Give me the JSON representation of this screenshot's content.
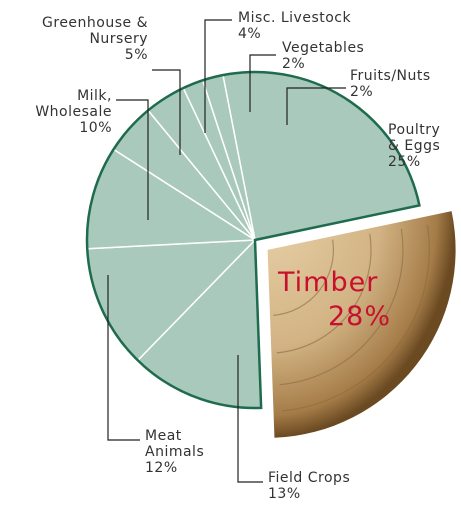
{
  "chart_data": {
    "type": "pie",
    "categories": [
      "Poultry\n& Eggs",
      "Timber",
      "Field Crops",
      "Meat\nAnimals",
      "Milk,\nWholesale",
      "Greenhouse &\nNursery",
      "Misc. Livestock",
      "Vegetables",
      "Fruits/Nuts"
    ],
    "values": [
      25,
      28,
      13,
      12,
      10,
      5,
      4,
      2,
      2
    ],
    "value_labels": [
      "25%",
      "28%",
      "13%",
      "12%",
      "10%",
      "5%",
      "4%",
      "2%",
      "2%"
    ],
    "colors": [
      "#a9c9bc",
      "#c8a878",
      "#a9c9bc",
      "#a9c9bc",
      "#a9c9bc",
      "#a9c9bc",
      "#a9c9bc",
      "#a9c9bc",
      "#a9c9bc"
    ],
    "border_color": "#1f6b4e",
    "highlight_color": "#c8102e"
  }
}
